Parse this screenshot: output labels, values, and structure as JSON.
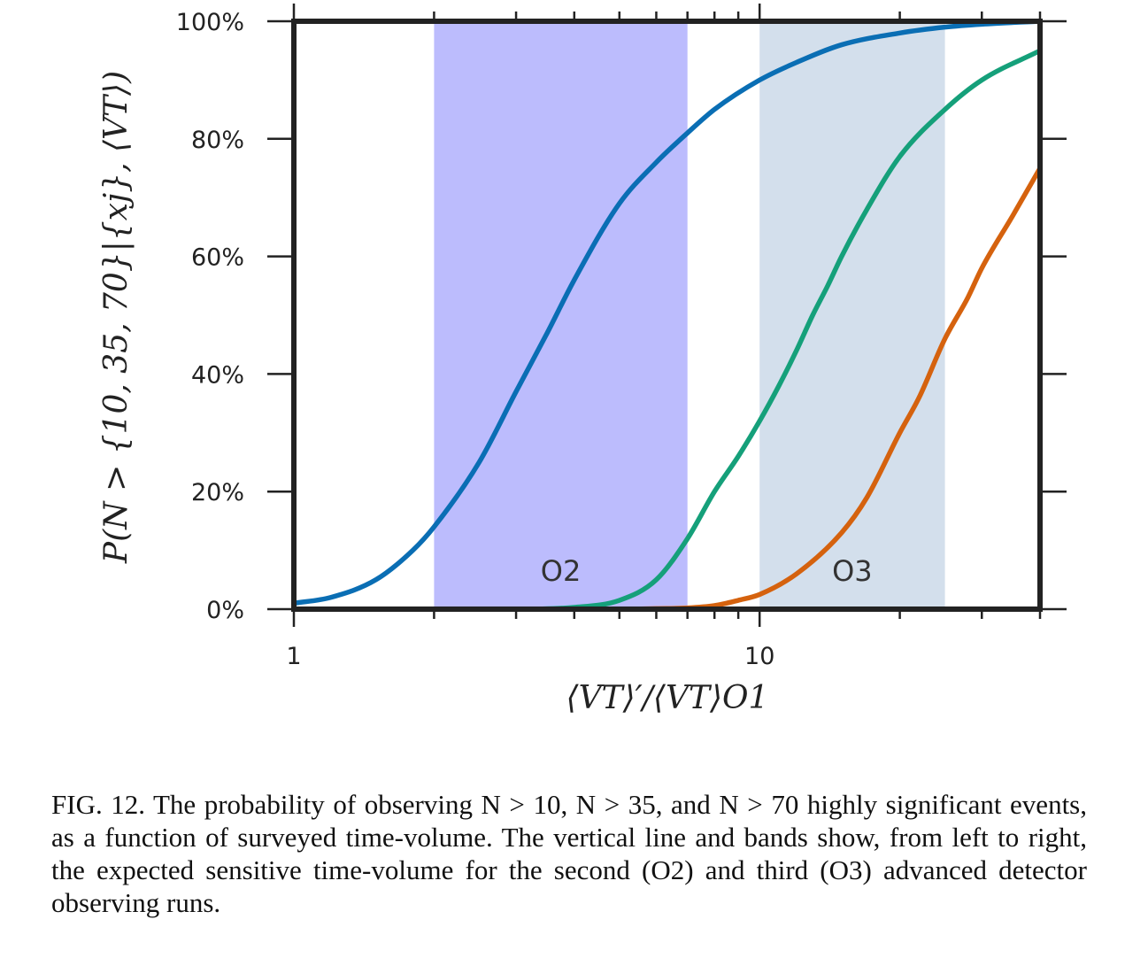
{
  "chart_data": {
    "type": "line",
    "x_scale": "log",
    "xlim": [
      1,
      40
    ],
    "ylim": [
      0,
      100
    ],
    "xlabel": "⟨VT⟩′/⟨VT⟩O1",
    "ylabel": "P(N > {10, 35, 70}|{xj}, ⟨VT⟩)",
    "x_ticks": [
      {
        "value": 1,
        "label": "1"
      },
      {
        "value": 10,
        "label": "10"
      }
    ],
    "y_ticks": [
      {
        "value": 0,
        "label": "0%"
      },
      {
        "value": 20,
        "label": "20%"
      },
      {
        "value": 40,
        "label": "40%"
      },
      {
        "value": 60,
        "label": "60%"
      },
      {
        "value": 80,
        "label": "80%"
      },
      {
        "value": 100,
        "label": "100%"
      }
    ],
    "bands": [
      {
        "label": "O2",
        "x_range": [
          2,
          7
        ],
        "color": "#bcbcfd"
      },
      {
        "label": "O3",
        "x_range": [
          10,
          25
        ],
        "color": "#d3dfec"
      }
    ],
    "series": [
      {
        "color": "#0a6eb4",
        "x": [
          1,
          1.2,
          1.5,
          1.8,
          2,
          2.5,
          3,
          3.5,
          4,
          5,
          6,
          7,
          8,
          10,
          12,
          15,
          20,
          25,
          30,
          40
        ],
        "y": [
          1,
          2,
          5,
          10,
          14,
          25,
          37,
          47,
          56,
          69,
          76,
          81,
          85,
          90,
          93,
          96,
          98,
          99,
          99.5,
          100
        ]
      },
      {
        "color": "#15a07a",
        "x": [
          1,
          2,
          3,
          4,
          5,
          6,
          7,
          8,
          9,
          10,
          11,
          12,
          13,
          14,
          15,
          17,
          20,
          25,
          30,
          40
        ],
        "y": [
          0,
          0,
          0,
          0.3,
          1.5,
          5,
          12,
          20,
          26,
          32,
          38,
          44,
          50,
          55,
          60,
          68,
          77,
          85,
          90,
          95
        ]
      },
      {
        "color": "#d5620e",
        "x": [
          1,
          5,
          6,
          7,
          8,
          9,
          10,
          12,
          15,
          17,
          20,
          22,
          25,
          28,
          30,
          35,
          40
        ],
        "y": [
          0,
          0,
          0.1,
          0.2,
          0.6,
          1.5,
          2.5,
          6,
          13,
          19,
          30,
          36,
          46,
          53,
          58,
          67,
          75
        ]
      }
    ]
  },
  "caption": "FIG. 12. The probability of observing N > 10, N > 35, and N > 70 highly significant events, as a function of surveyed time-volume. The vertical line and bands show, from left to right, the expected sensitive time-volume for the second (O2) and third (O3) advanced detector observing runs."
}
